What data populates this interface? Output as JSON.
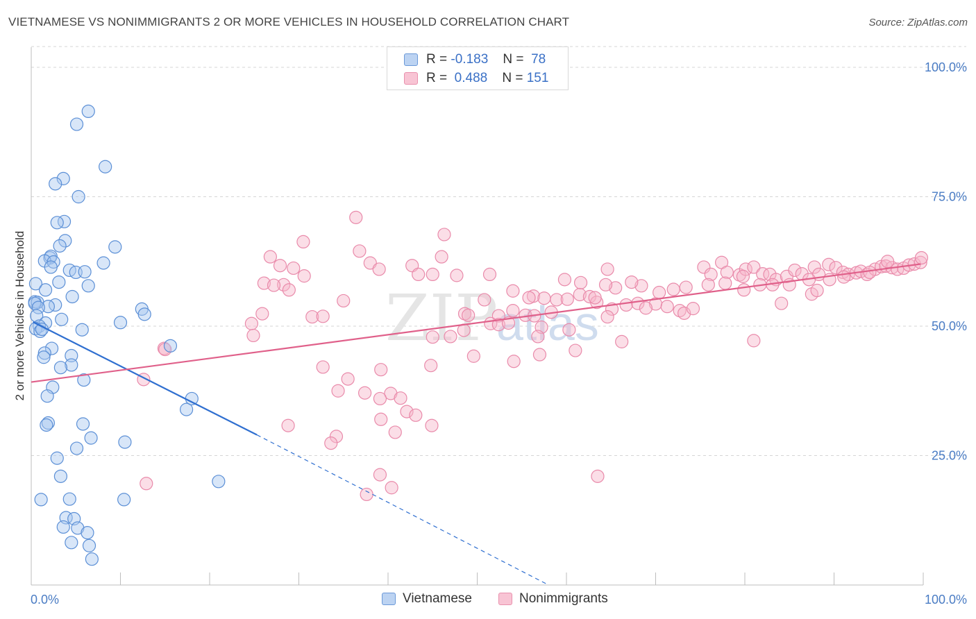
{
  "header": {
    "title": "VIETNAMESE VS NONIMMIGRANTS 2 OR MORE VEHICLES IN HOUSEHOLD CORRELATION CHART",
    "source": "Source: ZipAtlas.com"
  },
  "legend": {
    "rows": [
      {
        "r_label": "R =",
        "r_value": "-0.183",
        "n_label": "N =",
        "n_value": "78"
      },
      {
        "r_label": "R =",
        "r_value": "0.488",
        "n_label": "N =",
        "n_value": "151"
      }
    ]
  },
  "watermark": {
    "zip": "ZIP",
    "atlas": "atlas"
  },
  "colors": {
    "vietnamese_fill": "#a9c8f0",
    "vietnamese_stroke": "#5b8fd6",
    "vietnamese_line": "#2f6fd0",
    "nonimm_fill": "#f6b6ca",
    "nonimm_stroke": "#e98aaa",
    "nonimm_line": "#e0608a",
    "grid": "#d5d5d5",
    "tick_label": "#4a7cc4"
  },
  "chart_data": {
    "type": "scatter",
    "title": "VIETNAMESE VS NONIMMIGRANTS 2 OR MORE VEHICLES IN HOUSEHOLD CORRELATION CHART",
    "xlabel": "",
    "ylabel": "2 or more Vehicles in Household",
    "xlim": [
      0,
      100
    ],
    "ylim": [
      0,
      105
    ],
    "x_tick_labels": [
      {
        "value": 0,
        "label": "0.0%"
      },
      {
        "value": 100,
        "label": "100.0%"
      }
    ],
    "y_tick_labels": [
      {
        "value": 25,
        "label": "25.0%"
      },
      {
        "value": 50,
        "label": "50.0%"
      },
      {
        "value": 75,
        "label": "75.0%"
      },
      {
        "value": 100,
        "label": "100.0%"
      }
    ],
    "grid": "horizontal dashed",
    "legend_position": "top-center and bottom",
    "series": [
      {
        "name": "Vietnamese",
        "r": -0.183,
        "n": 78,
        "trend": {
          "x": [
            0.2,
            25.3
          ],
          "y": [
            50.8,
            29.0
          ],
          "dashed_to": [
            58.0,
            0.0
          ]
        },
        "points": [
          [
            6.4,
            91.5
          ],
          [
            5.1,
            89.0
          ],
          [
            8.3,
            80.8
          ],
          [
            3.6,
            78.5
          ],
          [
            2.7,
            77.5
          ],
          [
            5.3,
            75.0
          ],
          [
            3.7,
            70.2
          ],
          [
            2.9,
            70.0
          ],
          [
            3.8,
            66.5
          ],
          [
            3.2,
            65.5
          ],
          [
            9.4,
            65.3
          ],
          [
            2.1,
            63.2
          ],
          [
            2.2,
            63.5
          ],
          [
            1.5,
            62.6
          ],
          [
            2.5,
            62.4
          ],
          [
            8.1,
            62.2
          ],
          [
            2.2,
            61.4
          ],
          [
            4.3,
            60.8
          ],
          [
            5.0,
            60.4
          ],
          [
            6.0,
            60.5
          ],
          [
            3.1,
            58.5
          ],
          [
            0.5,
            58.2
          ],
          [
            6.4,
            57.8
          ],
          [
            1.6,
            57.0
          ],
          [
            4.6,
            55.7
          ],
          [
            0.4,
            54.7
          ],
          [
            0.7,
            54.6
          ],
          [
            0.4,
            54.4
          ],
          [
            2.7,
            54.1
          ],
          [
            1.9,
            53.8
          ],
          [
            0.8,
            53.6
          ],
          [
            12.4,
            53.3
          ],
          [
            0.6,
            52.0
          ],
          [
            3.4,
            51.3
          ],
          [
            12.7,
            52.3
          ],
          [
            10.0,
            50.7
          ],
          [
            1.6,
            50.6
          ],
          [
            0.9,
            50.0
          ],
          [
            0.5,
            49.5
          ],
          [
            1.0,
            49.0
          ],
          [
            5.7,
            49.3
          ],
          [
            1.2,
            49.4
          ],
          [
            15.6,
            46.2
          ],
          [
            2.3,
            45.7
          ],
          [
            1.5,
            44.8
          ],
          [
            4.5,
            44.3
          ],
          [
            1.4,
            44.0
          ],
          [
            4.5,
            42.5
          ],
          [
            3.3,
            42.0
          ],
          [
            5.9,
            39.6
          ],
          [
            2.4,
            38.2
          ],
          [
            1.8,
            36.5
          ],
          [
            18.0,
            36.0
          ],
          [
            17.4,
            33.9
          ],
          [
            1.9,
            31.3
          ],
          [
            1.7,
            30.9
          ],
          [
            5.8,
            31.1
          ],
          [
            6.7,
            28.4
          ],
          [
            10.5,
            27.6
          ],
          [
            5.1,
            26.4
          ],
          [
            2.9,
            24.5
          ],
          [
            3.3,
            21.0
          ],
          [
            21.0,
            20.0
          ],
          [
            1.1,
            16.5
          ],
          [
            4.3,
            16.6
          ],
          [
            10.4,
            16.5
          ],
          [
            3.9,
            13.0
          ],
          [
            4.8,
            12.8
          ],
          [
            3.6,
            11.2
          ],
          [
            5.2,
            11.0
          ],
          [
            6.3,
            10.1
          ],
          [
            4.5,
            8.2
          ],
          [
            6.5,
            7.6
          ],
          [
            6.8,
            5.0
          ]
        ]
      },
      {
        "name": "Nonimmigrants",
        "r": 0.488,
        "n": 151,
        "trend": {
          "x": [
            0.0,
            99.7
          ],
          "y": [
            39.2,
            62.0
          ]
        },
        "points": [
          [
            36.4,
            71.0
          ],
          [
            46.3,
            67.7
          ],
          [
            30.5,
            66.3
          ],
          [
            36.8,
            64.5
          ],
          [
            26.8,
            63.4
          ],
          [
            46.0,
            63.4
          ],
          [
            38.0,
            62.2
          ],
          [
            42.7,
            61.7
          ],
          [
            27.9,
            61.7
          ],
          [
            29.4,
            61.2
          ],
          [
            39.0,
            61.0
          ],
          [
            64.6,
            61.0
          ],
          [
            45.0,
            60.0
          ],
          [
            47.7,
            59.8
          ],
          [
            51.4,
            60.0
          ],
          [
            30.6,
            59.7
          ],
          [
            43.4,
            60.0
          ],
          [
            26.1,
            58.3
          ],
          [
            28.3,
            58.0
          ],
          [
            27.2,
            57.9
          ],
          [
            28.9,
            57.0
          ],
          [
            54.0,
            56.8
          ],
          [
            56.3,
            55.8
          ],
          [
            55.8,
            55.5
          ],
          [
            57.5,
            55.4
          ],
          [
            58.9,
            55.1
          ],
          [
            60.1,
            55.2
          ],
          [
            61.5,
            56.1
          ],
          [
            62.6,
            55.7
          ],
          [
            63.4,
            54.6
          ],
          [
            63.2,
            55.5
          ],
          [
            50.8,
            55.1
          ],
          [
            35.0,
            54.9
          ],
          [
            66.7,
            54.1
          ],
          [
            68.0,
            54.4
          ],
          [
            70.0,
            54.3
          ],
          [
            68.9,
            53.5
          ],
          [
            71.3,
            53.8
          ],
          [
            72.7,
            53.0
          ],
          [
            65.1,
            53.3
          ],
          [
            58.3,
            52.7
          ],
          [
            48.6,
            52.4
          ],
          [
            49.0,
            52.1
          ],
          [
            52.4,
            52.0
          ],
          [
            54.0,
            53.0
          ],
          [
            55.4,
            52.1
          ],
          [
            56.4,
            52.0
          ],
          [
            64.6,
            51.8
          ],
          [
            73.2,
            52.5
          ],
          [
            74.2,
            53.4
          ],
          [
            25.9,
            52.4
          ],
          [
            31.5,
            51.8
          ],
          [
            32.7,
            51.9
          ],
          [
            24.7,
            50.5
          ],
          [
            51.5,
            50.5
          ],
          [
            52.4,
            50.3
          ],
          [
            53.5,
            50.6
          ],
          [
            57.2,
            49.8
          ],
          [
            48.5,
            49.2
          ],
          [
            60.3,
            49.3
          ],
          [
            56.8,
            48.0
          ],
          [
            24.9,
            48.2
          ],
          [
            45.0,
            47.9
          ],
          [
            47.0,
            48.0
          ],
          [
            66.2,
            47.0
          ],
          [
            81.0,
            47.2
          ],
          [
            61.0,
            45.3
          ],
          [
            57.0,
            44.5
          ],
          [
            49.6,
            44.2
          ],
          [
            54.1,
            43.2
          ],
          [
            32.7,
            42.1
          ],
          [
            39.2,
            41.6
          ],
          [
            44.8,
            42.4
          ],
          [
            35.5,
            39.8
          ],
          [
            12.6,
            39.7
          ],
          [
            34.4,
            37.5
          ],
          [
            37.4,
            37.1
          ],
          [
            40.3,
            37.0
          ],
          [
            41.4,
            36.1
          ],
          [
            39.1,
            36.0
          ],
          [
            42.1,
            33.5
          ],
          [
            43.1,
            32.8
          ],
          [
            39.2,
            32.0
          ],
          [
            28.8,
            30.8
          ],
          [
            44.9,
            30.8
          ],
          [
            40.8,
            29.5
          ],
          [
            34.2,
            28.7
          ],
          [
            33.6,
            27.4
          ],
          [
            14.9,
            45.7
          ],
          [
            15.0,
            45.5
          ],
          [
            39.1,
            21.3
          ],
          [
            40.4,
            18.8
          ],
          [
            37.6,
            17.5
          ],
          [
            12.9,
            19.6
          ],
          [
            63.5,
            21.0
          ],
          [
            75.4,
            61.4
          ],
          [
            76.2,
            60.0
          ],
          [
            77.4,
            62.3
          ],
          [
            78.0,
            60.4
          ],
          [
            79.4,
            59.9
          ],
          [
            80.1,
            61.0
          ],
          [
            81.0,
            61.4
          ],
          [
            82.0,
            60.1
          ],
          [
            82.8,
            60.0
          ],
          [
            83.5,
            59.0
          ],
          [
            84.7,
            59.6
          ],
          [
            85.6,
            60.8
          ],
          [
            86.4,
            60.1
          ],
          [
            87.8,
            61.4
          ],
          [
            88.3,
            60.0
          ],
          [
            89.4,
            61.9
          ],
          [
            90.2,
            61.3
          ],
          [
            91.0,
            60.4
          ],
          [
            91.6,
            60.0
          ],
          [
            92.5,
            60.3
          ],
          [
            93.0,
            60.6
          ],
          [
            93.7,
            60.0
          ],
          [
            94.6,
            61.0
          ],
          [
            95.3,
            61.5
          ],
          [
            95.8,
            61.6
          ],
          [
            96.5,
            61.3
          ],
          [
            97.1,
            61.0
          ],
          [
            97.8,
            61.2
          ],
          [
            98.4,
            61.8
          ],
          [
            99.0,
            62.0
          ],
          [
            99.7,
            62.3
          ],
          [
            99.8,
            63.2
          ],
          [
            96.0,
            62.5
          ],
          [
            94.0,
            60.4
          ],
          [
            91.1,
            59.5
          ],
          [
            89.5,
            59.0
          ],
          [
            87.2,
            59.0
          ],
          [
            85.0,
            58.0
          ],
          [
            83.1,
            58.0
          ],
          [
            81.7,
            58.0
          ],
          [
            79.9,
            57.0
          ],
          [
            77.8,
            58.3
          ],
          [
            75.9,
            58.0
          ],
          [
            73.4,
            57.5
          ],
          [
            72.0,
            57.1
          ],
          [
            70.4,
            56.5
          ],
          [
            68.4,
            57.8
          ],
          [
            67.3,
            58.5
          ],
          [
            65.5,
            57.4
          ],
          [
            64.4,
            58.0
          ],
          [
            61.6,
            58.4
          ],
          [
            59.8,
            59.0
          ],
          [
            84.1,
            54.4
          ],
          [
            87.5,
            56.2
          ],
          [
            88.1,
            56.9
          ],
          [
            79.8,
            59.6
          ]
        ]
      }
    ]
  },
  "bottom_legend": {
    "items": [
      "Vietnamese",
      "Nonimmigrants"
    ]
  }
}
